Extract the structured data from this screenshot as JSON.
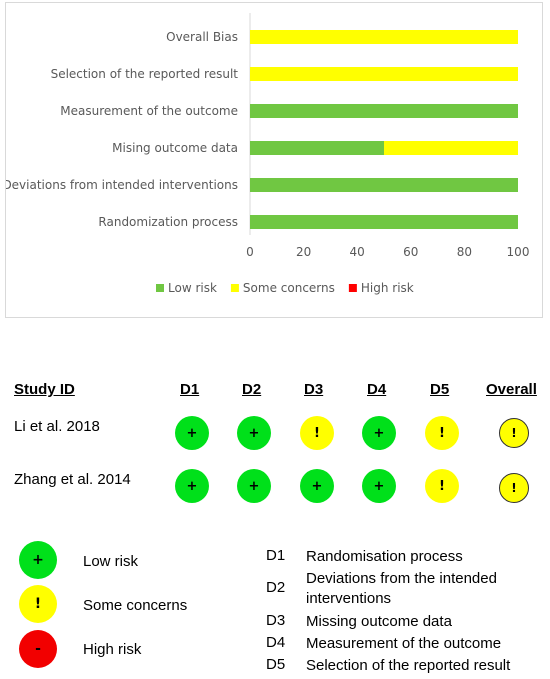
{
  "chart_data": {
    "type": "bar",
    "orientation": "horizontal",
    "stacked": true,
    "categories": [
      "Overall Bias",
      "Selection of the reported result",
      "Measurement of the outcome",
      "Mising outcome data",
      "Deviations from intended interventions",
      "Randomization process"
    ],
    "series": [
      {
        "name": "Low risk",
        "color": "#70c742",
        "values": [
          0,
          0,
          100,
          50,
          100,
          100
        ]
      },
      {
        "name": "Some concerns",
        "color": "#ffff00",
        "values": [
          100,
          100,
          0,
          50,
          0,
          0
        ]
      },
      {
        "name": "High risk",
        "color": "#ff0000",
        "values": [
          0,
          0,
          0,
          0,
          0,
          0
        ]
      }
    ],
    "xlim": [
      0,
      100
    ],
    "xticks": [
      "0",
      "20",
      "40",
      "60",
      "80",
      "100"
    ],
    "legend_position": "bottom",
    "grid": false
  },
  "table": {
    "headers": {
      "study": "Study ID",
      "d1": "D1",
      "d2": "D2",
      "d3": "D3",
      "d4": "D4",
      "d5": "D5",
      "overall": "Overall"
    },
    "rows": [
      {
        "study": "Li et al. 2018",
        "marks": [
          {
            "symbol": "+",
            "risk": "low"
          },
          {
            "symbol": "+",
            "risk": "low"
          },
          {
            "symbol": "!",
            "risk": "some"
          },
          {
            "symbol": "+",
            "risk": "low"
          },
          {
            "symbol": "!",
            "risk": "some"
          }
        ],
        "overall": {
          "symbol": "!",
          "risk": "some"
        }
      },
      {
        "study": "Zhang et al. 2014",
        "marks": [
          {
            "symbol": "+",
            "risk": "low"
          },
          {
            "symbol": "+",
            "risk": "low"
          },
          {
            "symbol": "+",
            "risk": "low"
          },
          {
            "symbol": "+",
            "risk": "low"
          },
          {
            "symbol": "!",
            "risk": "some"
          }
        ],
        "overall": {
          "symbol": "!",
          "risk": "some"
        }
      }
    ]
  },
  "key": {
    "items": [
      {
        "symbol": "+",
        "label": "Low risk",
        "color": "#00e01a"
      },
      {
        "symbol": "!",
        "label": "Some concerns",
        "color": "#ffff00"
      },
      {
        "symbol": "-",
        "label": "High risk",
        "color": "#f20000"
      }
    ],
    "domains": [
      {
        "code": "D1",
        "text": "Randomisation process"
      },
      {
        "code": "D2",
        "text": "Deviations from the intended interventions"
      },
      {
        "code": "D3",
        "text": "Missing outcome data"
      },
      {
        "code": "D4",
        "text": "Measurement of the outcome"
      },
      {
        "code": "D5",
        "text": "Selection of the reported result"
      }
    ]
  }
}
